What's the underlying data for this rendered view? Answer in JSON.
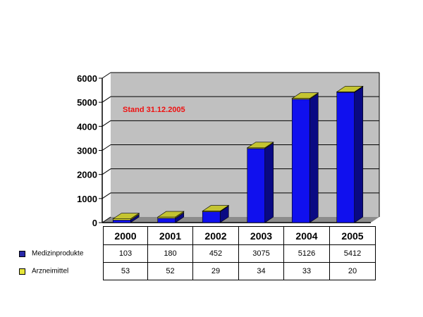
{
  "chart_data": {
    "type": "bar",
    "annotation": "Stand 31.12.2005",
    "categories": [
      "2000",
      "2001",
      "2002",
      "2003",
      "2004",
      "2005"
    ],
    "ylim": [
      0,
      6000
    ],
    "yticks": [
      "0",
      "1000",
      "2000",
      "3000",
      "4000",
      "5000",
      "6000"
    ],
    "grid": true,
    "stacked": true,
    "series": [
      {
        "name": "Medizinprodukte",
        "color": "#1010ee",
        "values": [
          103,
          180,
          452,
          3075,
          5126,
          5412
        ]
      },
      {
        "name": "Arzneimittel",
        "color": "#e6e63a",
        "values": [
          53,
          52,
          29,
          34,
          33,
          20
        ]
      }
    ]
  },
  "table": {
    "rows": [
      {
        "label": "Medizinprodukte",
        "values": [
          "103",
          "180",
          "452",
          "3075",
          "5126",
          "5412"
        ]
      },
      {
        "label": "Arzneimittel",
        "values": [
          "53",
          "52",
          "29",
          "34",
          "33",
          "20"
        ]
      }
    ]
  }
}
